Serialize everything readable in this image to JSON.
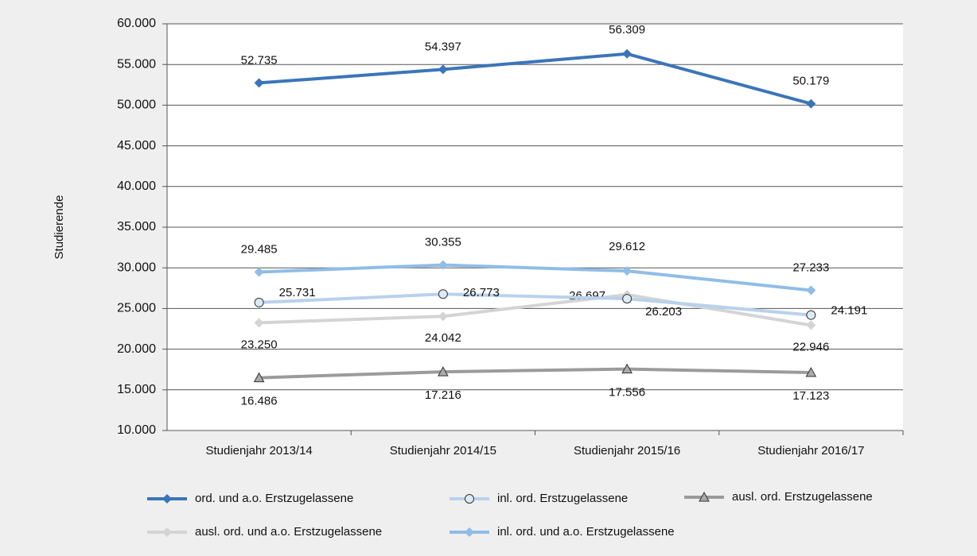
{
  "chart_data": {
    "type": "line",
    "y_label": "Studierende",
    "categories": [
      "Studienjahr 2013/14",
      "Studienjahr 2014/15",
      "Studienjahr 2015/16",
      "Studienjahr 2016/17"
    ],
    "ylim": [
      10000,
      60000
    ],
    "yticks": [
      {
        "value": 10000,
        "label": "10.000"
      },
      {
        "value": 15000,
        "label": "15.000"
      },
      {
        "value": 20000,
        "label": "20.000"
      },
      {
        "value": 25000,
        "label": "25.000"
      },
      {
        "value": 30000,
        "label": "30.000"
      },
      {
        "value": 35000,
        "label": "35.000"
      },
      {
        "value": 40000,
        "label": "40.000"
      },
      {
        "value": 45000,
        "label": "45.000"
      },
      {
        "value": 50000,
        "label": "50.000"
      },
      {
        "value": 55000,
        "label": "55.000"
      },
      {
        "value": 60000,
        "label": "60.000"
      }
    ],
    "grid": true,
    "legend": "bottom",
    "series": [
      {
        "name": "ord. und a.o. Erstzugelassene",
        "color": "#3b75b9",
        "marker": "diamond",
        "values": [
          52735,
          54397,
          56309,
          50179
        ],
        "value_labels": [
          "52.735",
          "54.397",
          "56.309",
          "50.179"
        ]
      },
      {
        "name": "inl. ord. Erstzugelassene",
        "color": "#b9d1ec",
        "marker": "circle",
        "values": [
          25731,
          26773,
          26203,
          24191
        ],
        "value_labels": [
          "25.731",
          "26.773",
          "26.203",
          "24.191"
        ]
      },
      {
        "name": "ausl. ord. Erstzugelassene",
        "color": "#9b9b9b",
        "marker": "triangle",
        "values": [
          16486,
          17216,
          17556,
          17123
        ],
        "value_labels": [
          "16.486",
          "17.216",
          "17.556",
          "17.123"
        ]
      },
      {
        "name": "ausl. ord. und a.o. Erstzugelassene",
        "color": "#d4d4d4",
        "marker": "diamond",
        "values": [
          23250,
          24042,
          26697,
          22946
        ],
        "value_labels": [
          "23.250",
          "24.042",
          "26.697",
          "22.946"
        ]
      },
      {
        "name": "inl. ord. und a.o. Erstzugelassene",
        "color": "#8fbde7",
        "marker": "diamond",
        "values": [
          29485,
          30355,
          29612,
          27233
        ],
        "value_labels": [
          "29.485",
          "30.355",
          "29.612",
          "27.233"
        ]
      }
    ]
  }
}
